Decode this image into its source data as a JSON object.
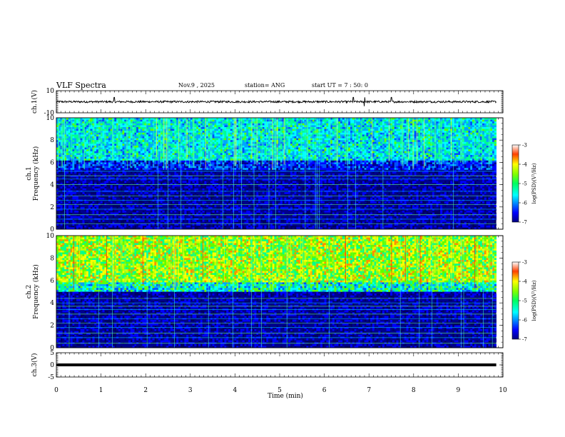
{
  "header": {
    "title": "VLF Spectra",
    "date": "Nov.9 , 2025",
    "station": "station= ANG",
    "start": "start UT = 7 : 50: 0"
  },
  "chart_data": [
    {
      "type": "line",
      "name": "ch1-waveform",
      "ylabel": "ch.1(V)",
      "ylim": [
        -10,
        10
      ],
      "yticks": [
        "10",
        "-10"
      ],
      "xlim": [
        0,
        10
      ],
      "baseline": 0,
      "spikes_min": [
        1.3,
        6.65,
        6.9,
        7.5
      ]
    },
    {
      "type": "heatmap",
      "name": "ch1-spectrogram",
      "ylabel": "ch.1\nFrequency (kHz)",
      "ylim": [
        0,
        10
      ],
      "yticks": [
        "0",
        "2",
        "4",
        "6",
        "8",
        "10"
      ],
      "xlim": [
        0,
        10
      ],
      "colorbar": {
        "label": "log(PSD)(V²/Hz)",
        "range": [
          -7,
          -3
        ],
        "ticks": [
          "-3",
          "-4",
          "-5",
          "-6",
          "-7"
        ]
      },
      "intensity": "low",
      "noise_floor_khz": 5.3
    },
    {
      "type": "heatmap",
      "name": "ch2-spectrogram",
      "ylabel": "ch.2\nFrequency (kHz)",
      "ylim": [
        0,
        10
      ],
      "yticks": [
        "0",
        "2",
        "4",
        "6",
        "8",
        "10"
      ],
      "xlim": [
        0,
        10
      ],
      "colorbar": {
        "label": "log(PSD)(V²/Hz)",
        "range": [
          -7,
          -3
        ],
        "ticks": [
          "-3",
          "-4",
          "-5",
          "-6",
          "-7"
        ]
      },
      "intensity": "high",
      "noise_floor_khz": 5.0
    },
    {
      "type": "line",
      "name": "ch3-waveform",
      "ylabel": "ch.3(V)",
      "ylim": [
        -5,
        5
      ],
      "yticks": [
        "5",
        "0",
        "-5"
      ],
      "xlim": [
        0,
        10
      ],
      "baseline": 0
    }
  ],
  "xaxis": {
    "label": "Time (min)",
    "ticks": [
      "0",
      "1",
      "2",
      "3",
      "4",
      "5",
      "6",
      "7",
      "8",
      "9",
      "10"
    ]
  },
  "colors": {
    "jet": [
      "#000080",
      "#0000ff",
      "#00a0ff",
      "#00ffff",
      "#00ff80",
      "#80ff00",
      "#ffff00",
      "#ff8000",
      "#ff0000",
      "#800000"
    ]
  }
}
